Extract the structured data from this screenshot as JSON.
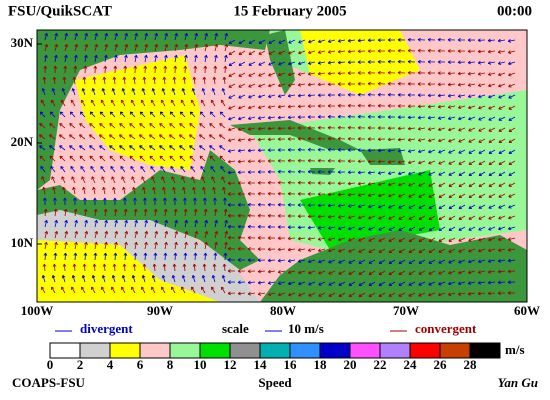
{
  "header": {
    "left": "FSU/QuikSCAT",
    "center": "15 February 2005",
    "right": "00:00"
  },
  "map": {
    "lat_labels": [
      "30N",
      "20N",
      "10N"
    ],
    "lon_labels": [
      "100W",
      "90W",
      "80W",
      "70W",
      "60W"
    ]
  },
  "legend": {
    "divergent": "divergent",
    "scale": "scale",
    "scale_value": "10 m/s",
    "convergent": "convergent"
  },
  "colorbar": {
    "labels": [
      "0",
      "2",
      "4",
      "6",
      "8",
      "10",
      "12",
      "14",
      "16",
      "18",
      "20",
      "22",
      "24",
      "26",
      "28"
    ],
    "unit": "m/s",
    "title": "Speed",
    "colors": [
      "#ffffff",
      "#d0d0d0",
      "#ffff00",
      "#ffc8c8",
      "#98f898",
      "#00e000",
      "#909090",
      "#00b0b0",
      "#3090ff",
      "#0000c8",
      "#ff50ff",
      "#b080ff",
      "#ff0000",
      "#c84000",
      "#000000"
    ]
  },
  "footer": {
    "left": "COAPS-FSU",
    "right": "Yan Gu"
  }
}
